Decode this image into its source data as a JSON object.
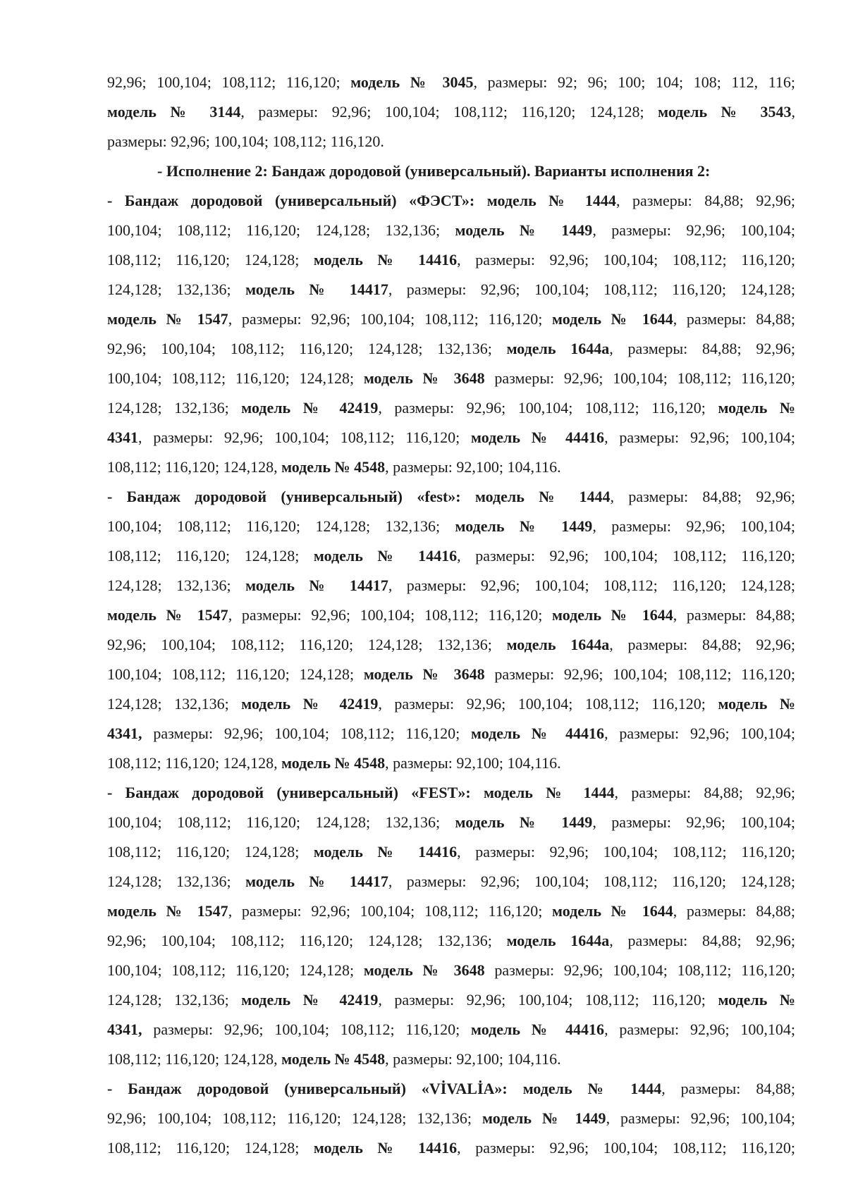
{
  "document": {
    "paragraphs": [
      {
        "type": "text",
        "lines": [
          [
            [
              "92,96; 100,104; 108,112; 116,120; ",
              0
            ],
            [
              "модель № 3045",
              1
            ],
            [
              ", размеры: 92; 96; 100; 104; 108; 112, 116;",
              0
            ]
          ],
          [
            [
              "модель № 3144",
              1
            ],
            [
              ", размеры: 92,96; 100,104; 108,112; 116,120; 124,128; ",
              0
            ],
            [
              "модель № 3543",
              1
            ],
            [
              ",",
              0
            ]
          ],
          [
            [
              "размеры: 92,96; 100,104; 108,112; 116,120.",
              0
            ]
          ]
        ]
      },
      {
        "type": "heading",
        "lines": [
          [
            [
              "- Исполнение 2: Бандаж дородовой (универсальный). Варианты исполнения 2:",
              1
            ]
          ]
        ]
      },
      {
        "type": "text",
        "lines": [
          [
            [
              "- Бандаж дородовой (универсальный) «ФЭСТ»: модель № 1444",
              1
            ],
            [
              ", размеры: 84,88; 92,96;",
              0
            ]
          ],
          [
            [
              "100,104; 108,112; 116,120; 124,128; 132,136; ",
              0
            ],
            [
              "модель № 1449",
              1
            ],
            [
              ", размеры: 92,96; 100,104;",
              0
            ]
          ],
          [
            [
              "108,112; 116,120; 124,128; ",
              0
            ],
            [
              "модель № 14416",
              1
            ],
            [
              ", размеры: 92,96; 100,104; 108,112; 116,120;",
              0
            ]
          ],
          [
            [
              "124,128; 132,136; ",
              0
            ],
            [
              "модель № 14417",
              1
            ],
            [
              ", размеры: 92,96; 100,104; 108,112; 116,120; 124,128;",
              0
            ]
          ],
          [
            [
              "модель № 1547",
              1
            ],
            [
              ", размеры: 92,96; 100,104; 108,112; 116,120; ",
              0
            ],
            [
              "модель № 1644",
              1
            ],
            [
              ", размеры: 84,88;",
              0
            ]
          ],
          [
            [
              "92,96; 100,104; 108,112; 116,120; 124,128; 132,136; ",
              0
            ],
            [
              "модель 1644а",
              1
            ],
            [
              ", размеры: 84,88; 92,96;",
              0
            ]
          ],
          [
            [
              "100,104; 108,112; 116,120; 124,128; ",
              0
            ],
            [
              "модель № 3648",
              1
            ],
            [
              " размеры: 92,96; 100,104; 108,112; 116,120;",
              0
            ]
          ],
          [
            [
              "124,128; 132,136; ",
              0
            ],
            [
              "модель № 42419",
              1
            ],
            [
              ", размеры: 92,96; 100,104; 108,112; 116,120; ",
              0
            ],
            [
              "модель №",
              1
            ]
          ],
          [
            [
              "4341",
              1
            ],
            [
              ", размеры: 92,96; 100,104; 108,112; 116,120; ",
              0
            ],
            [
              "модель № 44416",
              1
            ],
            [
              ", размеры: 92,96; 100,104;",
              0
            ]
          ],
          [
            [
              "108,112; 116,120; 124,128, ",
              0
            ],
            [
              "модель № 4548",
              1
            ],
            [
              ", размеры: 92,100; 104,116.",
              0
            ]
          ]
        ]
      },
      {
        "type": "text",
        "lines": [
          [
            [
              "- Бандаж дородовой (универсальный) «fest»: модель № 1444",
              1
            ],
            [
              ", размеры: 84,88; 92,96;",
              0
            ]
          ],
          [
            [
              "100,104; 108,112; 116,120; 124,128; 132,136; ",
              0
            ],
            [
              "модель № 1449",
              1
            ],
            [
              ", размеры: 92,96; 100,104;",
              0
            ]
          ],
          [
            [
              "108,112; 116,120; 124,128; ",
              0
            ],
            [
              "модель № 14416",
              1
            ],
            [
              ", размеры: 92,96; 100,104; 108,112; 116,120;",
              0
            ]
          ],
          [
            [
              "124,128; 132,136; ",
              0
            ],
            [
              "модель № 14417",
              1
            ],
            [
              ", размеры: 92,96; 100,104; 108,112; 116,120; 124,128;",
              0
            ]
          ],
          [
            [
              "модель № 1547",
              1
            ],
            [
              ", размеры: 92,96; 100,104; 108,112; 116,120; ",
              0
            ],
            [
              "модель № 1644",
              1
            ],
            [
              ", размеры: 84,88;",
              0
            ]
          ],
          [
            [
              "92,96; 100,104; 108,112; 116,120; 124,128; 132,136; ",
              0
            ],
            [
              "модель 1644а",
              1
            ],
            [
              ", размеры: 84,88; 92,96;",
              0
            ]
          ],
          [
            [
              "100,104; 108,112; 116,120; 124,128; ",
              0
            ],
            [
              "модель № 3648",
              1
            ],
            [
              " размеры: 92,96; 100,104; 108,112; 116,120;",
              0
            ]
          ],
          [
            [
              "124,128; 132,136; ",
              0
            ],
            [
              "модель № 42419",
              1
            ],
            [
              ", размеры: 92,96; 100,104; 108,112; 116,120; ",
              0
            ],
            [
              "модель №",
              1
            ]
          ],
          [
            [
              "4341,",
              1
            ],
            [
              " размеры: 92,96; 100,104; 108,112; 116,120; ",
              0
            ],
            [
              "модель № 44416",
              1
            ],
            [
              ", размеры: 92,96; 100,104;",
              0
            ]
          ],
          [
            [
              "108,112; 116,120; 124,128, ",
              0
            ],
            [
              "модель № 4548",
              1
            ],
            [
              ", размеры: 92,100; 104,116.",
              0
            ]
          ]
        ]
      },
      {
        "type": "text",
        "lines": [
          [
            [
              "- Бандаж дородовой (универсальный) «FEST»: модель № 1444",
              1
            ],
            [
              ", размеры: 84,88; 92,96;",
              0
            ]
          ],
          [
            [
              "100,104; 108,112; 116,120; 124,128; 132,136; ",
              0
            ],
            [
              "модель № 1449",
              1
            ],
            [
              ", размеры: 92,96; 100,104;",
              0
            ]
          ],
          [
            [
              "108,112; 116,120; 124,128; ",
              0
            ],
            [
              "модель № 14416",
              1
            ],
            [
              ", размеры: 92,96; 100,104; 108,112; 116,120;",
              0
            ]
          ],
          [
            [
              "124,128; 132,136; ",
              0
            ],
            [
              "модель № 14417",
              1
            ],
            [
              ", размеры: 92,96; 100,104; 108,112; 116,120; 124,128;",
              0
            ]
          ],
          [
            [
              "модель № 1547",
              1
            ],
            [
              ", размеры: 92,96; 100,104; 108,112; 116,120; ",
              0
            ],
            [
              "модель № 1644",
              1
            ],
            [
              ", размеры: 84,88;",
              0
            ]
          ],
          [
            [
              "92,96; 100,104; 108,112; 116,120; 124,128; 132,136; ",
              0
            ],
            [
              "модель 1644а",
              1
            ],
            [
              ", размеры: 84,88; 92,96;",
              0
            ]
          ],
          [
            [
              "100,104; 108,112; 116,120; 124,128; ",
              0
            ],
            [
              "модель № 3648",
              1
            ],
            [
              " размеры: 92,96; 100,104; 108,112; 116,120;",
              0
            ]
          ],
          [
            [
              "124,128; 132,136; ",
              0
            ],
            [
              "модель № 42419",
              1
            ],
            [
              ", размеры: 92,96; 100,104; 108,112; 116,120; ",
              0
            ],
            [
              "модель №",
              1
            ]
          ],
          [
            [
              "4341,",
              1
            ],
            [
              " размеры: 92,96; 100,104; 108,112; 116,120; ",
              0
            ],
            [
              "модель № 44416",
              1
            ],
            [
              ", размеры: 92,96; 100,104;",
              0
            ]
          ],
          [
            [
              "108,112; 116,120; 124,128, ",
              0
            ],
            [
              "модель № 4548",
              1
            ],
            [
              ", размеры: 92,100; 104,116.",
              0
            ]
          ]
        ]
      },
      {
        "type": "text",
        "open": true,
        "lines": [
          [
            [
              "- Бандаж дородовой (универсальный) «VİVALİA»: модель № 1444",
              1
            ],
            [
              ", размеры: 84,88;",
              0
            ]
          ],
          [
            [
              "92,96; 100,104; 108,112; 116,120; 124,128; 132,136; ",
              0
            ],
            [
              "модель № 1449",
              1
            ],
            [
              ", размеры: 92,96; 100,104;",
              0
            ]
          ],
          [
            [
              "108,112; 116,120; 124,128; ",
              0
            ],
            [
              "модель № 14416",
              1
            ],
            [
              ", размеры: 92,96; 100,104; 108,112; 116,120;",
              0
            ]
          ]
        ]
      }
    ]
  }
}
